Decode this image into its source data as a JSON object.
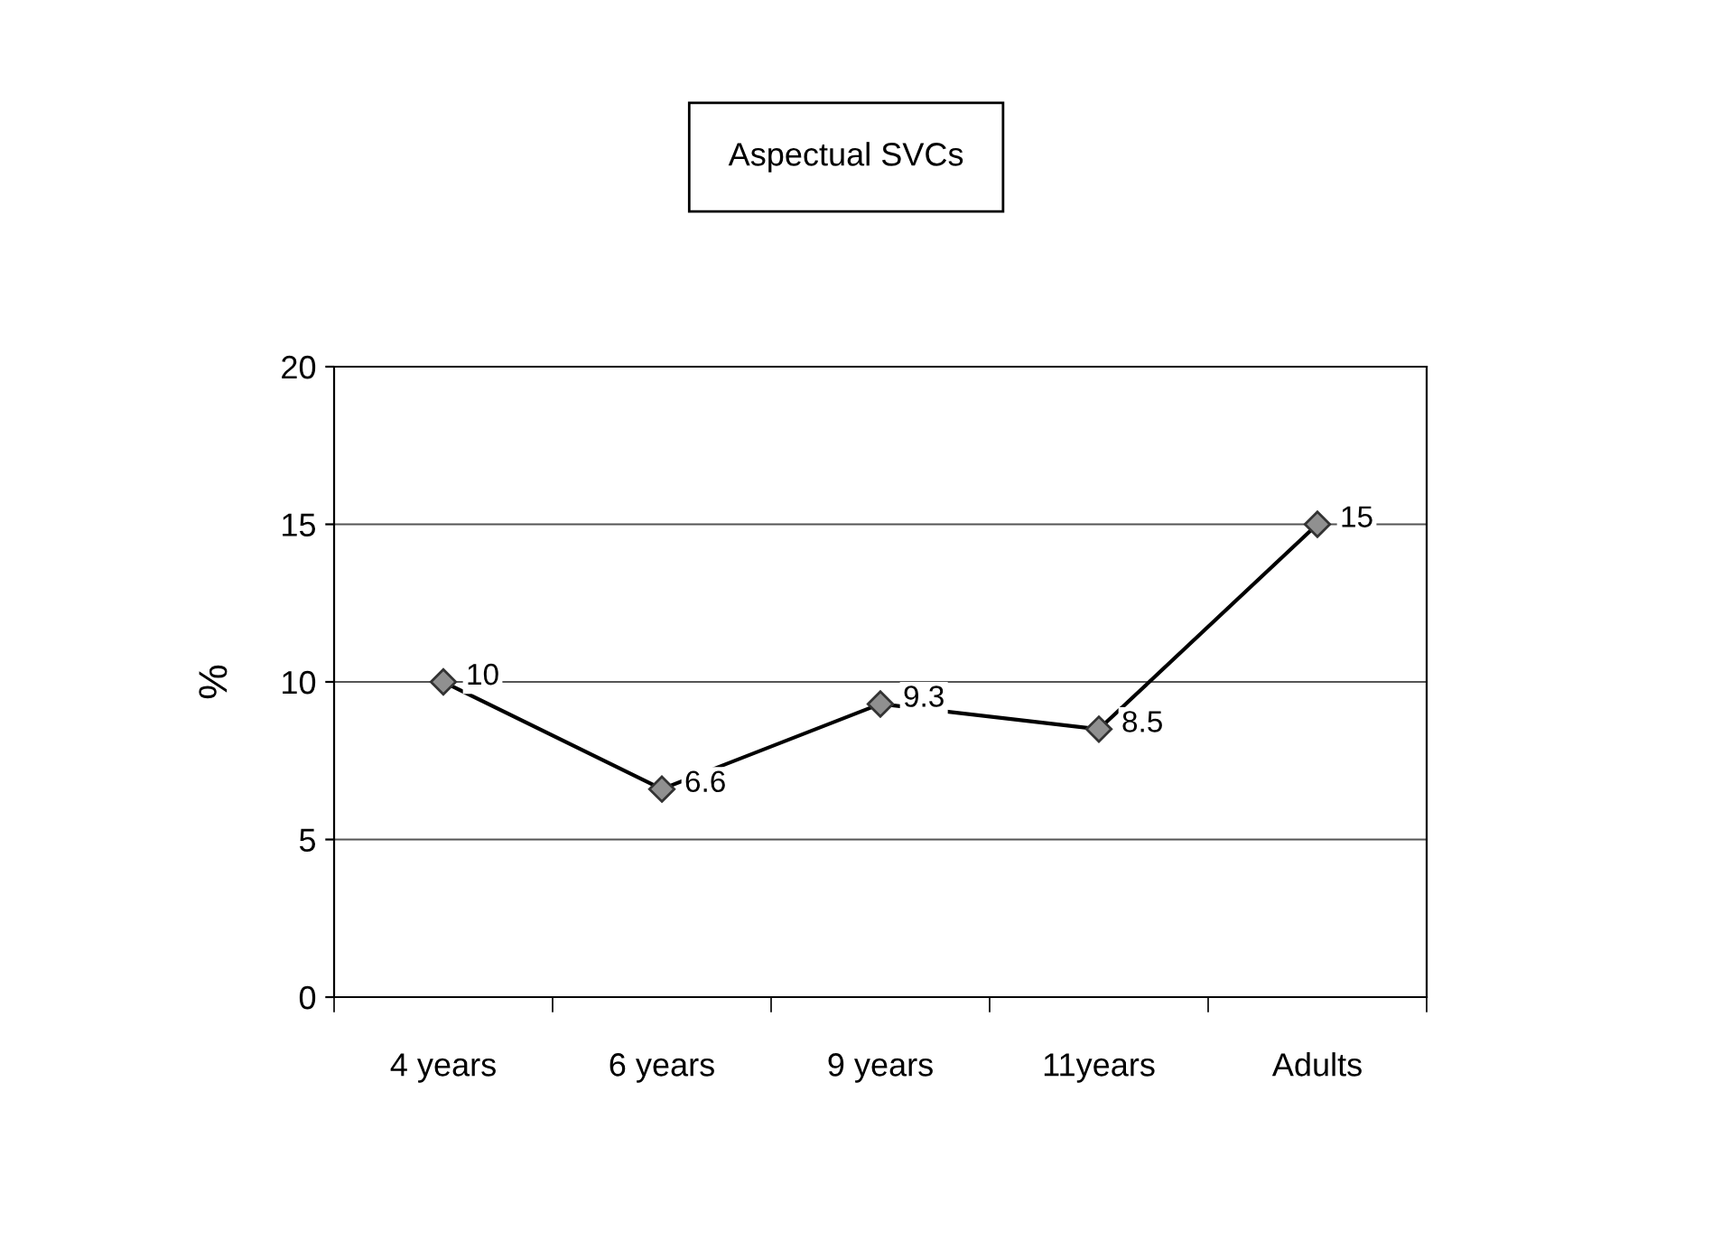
{
  "chart_data": {
    "type": "line",
    "title": "Aspectual SVCs",
    "ylabel": "%",
    "categories": [
      "4 years",
      "6 years",
      "9 years",
      "11years",
      "Adults"
    ],
    "series": [
      {
        "color": "#000000",
        "values": [
          10,
          6.6,
          9.3,
          8.5,
          15
        ]
      }
    ],
    "ylim": [
      0,
      20
    ],
    "yticks": [
      0,
      5,
      10,
      15,
      20
    ],
    "grid": "y",
    "marker": "diamond",
    "line_style": "solid",
    "data_labels": true
  }
}
